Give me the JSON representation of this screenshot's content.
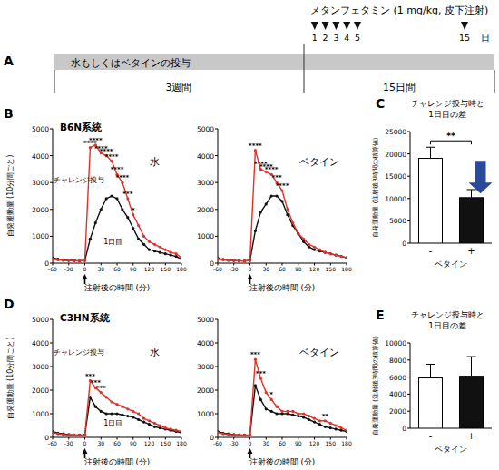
{
  "schematic": {
    "label": "A",
    "drug": "メタンフェタミン (1 mg/kg, 皮下注射)",
    "days": [
      1,
      2,
      3,
      4,
      5,
      15
    ],
    "day_unit": "日",
    "treatment": "水もしくはベタインの投与",
    "phases": [
      "3週間",
      "15日間"
    ]
  },
  "chart_data": [
    {
      "type": "line",
      "label": "B",
      "title": "B6N系統",
      "subtitle": "水",
      "ylabel": "自発運動量 (10分間ごと)",
      "xlabel": "注射後の時間 (分)",
      "x": [
        -60,
        -50,
        -40,
        -30,
        -20,
        -10,
        0,
        10,
        20,
        30,
        40,
        50,
        60,
        70,
        80,
        90,
        100,
        110,
        120,
        130,
        140,
        150,
        160,
        170,
        180
      ],
      "xlim": [
        -60,
        180
      ],
      "xticks": [
        -60,
        -30,
        0,
        30,
        60,
        90,
        120,
        150,
        180
      ],
      "ylim": [
        0,
        5000
      ],
      "yticks": [
        0,
        1000,
        2000,
        3000,
        4000,
        5000
      ],
      "injection_time": 0,
      "series": [
        {
          "color": "#e0322b",
          "marker": "circle",
          "values": [
            150,
            120,
            100,
            100,
            80,
            80,
            100,
            4300,
            4400,
            4100,
            4000,
            3800,
            3300,
            3000,
            2400,
            1800,
            1400,
            1000,
            800,
            700,
            600,
            500,
            400,
            350,
            200
          ]
        },
        {
          "color": "#111111",
          "marker": "circle",
          "values": [
            200,
            150,
            120,
            100,
            100,
            80,
            100,
            900,
            1500,
            2000,
            2400,
            2500,
            2400,
            2000,
            1700,
            1300,
            900,
            700,
            500,
            450,
            400,
            350,
            300,
            250,
            150
          ]
        }
      ],
      "significance": [
        {
          "x": 10,
          "label": "****"
        },
        {
          "x": 20,
          "label": "****"
        },
        {
          "x": 30,
          "label": "****"
        },
        {
          "x": 40,
          "label": "****"
        },
        {
          "x": 50,
          "label": "****"
        },
        {
          "x": 60,
          "label": "****"
        },
        {
          "x": 70,
          "label": "****"
        },
        {
          "x": 80,
          "label": "***"
        },
        {
          "x": 90,
          "label": "*"
        }
      ],
      "annotations": [
        {
          "text": "チャレンジ投与",
          "x": -58,
          "y": 3000
        },
        {
          "text": "1日目",
          "x": 35,
          "y": 700
        }
      ]
    },
    {
      "type": "line",
      "subtitle": "ベタイン",
      "xlabel": "注射後の時間 (分)",
      "x": [
        -60,
        -50,
        -40,
        -30,
        -20,
        -10,
        0,
        10,
        20,
        30,
        40,
        50,
        60,
        70,
        80,
        90,
        100,
        110,
        120,
        130,
        140,
        150,
        160,
        170,
        180
      ],
      "xlim": [
        -60,
        180
      ],
      "xticks": [
        -60,
        -30,
        0,
        30,
        60,
        90,
        120,
        150,
        180
      ],
      "ylim": [
        0,
        5000
      ],
      "yticks": [
        0,
        1000,
        2000,
        3000,
        4000,
        5000
      ],
      "injection_time": 0,
      "series": [
        {
          "color": "#e0322b",
          "marker": "circle",
          "values": [
            150,
            120,
            100,
            90,
            80,
            80,
            100,
            4200,
            3500,
            3400,
            3300,
            3000,
            2700,
            2000,
            1500,
            1100,
            900,
            700,
            600,
            500,
            400,
            350,
            300,
            250,
            200
          ]
        },
        {
          "color": "#111111",
          "marker": "circle",
          "values": [
            180,
            140,
            110,
            100,
            90,
            80,
            100,
            1200,
            1900,
            2200,
            2500,
            2500,
            2300,
            1800,
            1400,
            1100,
            800,
            600,
            500,
            450,
            400,
            350,
            300,
            250,
            200
          ]
        }
      ],
      "significance": [
        {
          "x": 10,
          "label": "****"
        },
        {
          "x": 20,
          "label": "****"
        },
        {
          "x": 30,
          "label": "****"
        },
        {
          "x": 40,
          "label": "****"
        },
        {
          "x": 50,
          "label": "***"
        },
        {
          "x": 60,
          "label": "****"
        }
      ]
    },
    {
      "type": "bar",
      "label": "C",
      "title": [
        "チャレンジ投与時と",
        "1日目の差"
      ],
      "ylabel": "自発運動量 (注射後3時間の積算値)",
      "xlabel": "ベタイン",
      "categories": [
        "-",
        "+"
      ],
      "values": [
        19000,
        10200
      ],
      "errors": [
        2500,
        1800
      ],
      "colors": [
        "#ffffff",
        "#111111"
      ],
      "ylim": [
        0,
        25000
      ],
      "yticks": [
        0,
        5000,
        10000,
        15000,
        20000,
        25000
      ],
      "significance": "**"
    },
    {
      "type": "line",
      "label": "D",
      "title": "C3HN系統",
      "subtitle": "水",
      "ylabel": "自発運動量 (10分間ごと)",
      "xlabel": "注射後の時間 (分)",
      "x": [
        -60,
        -50,
        -40,
        -30,
        -20,
        -10,
        0,
        10,
        20,
        30,
        40,
        50,
        60,
        70,
        80,
        90,
        100,
        110,
        120,
        130,
        140,
        150,
        160,
        170,
        180
      ],
      "xlim": [
        -60,
        180
      ],
      "xticks": [
        -60,
        -30,
        0,
        30,
        60,
        90,
        120,
        150,
        180
      ],
      "ylim": [
        0,
        5000
      ],
      "yticks": [
        0,
        1000,
        2000,
        3000,
        4000,
        5000
      ],
      "injection_time": 0,
      "series": [
        {
          "color": "#e0322b",
          "marker": "circle",
          "values": [
            200,
            150,
            120,
            100,
            100,
            90,
            100,
            2400,
            2100,
            1900,
            1700,
            1500,
            1400,
            1300,
            1200,
            1100,
            1000,
            800,
            700,
            600,
            500,
            400,
            350,
            300,
            250
          ]
        },
        {
          "color": "#111111",
          "marker": "circle",
          "values": [
            250,
            180,
            150,
            120,
            100,
            100,
            100,
            1700,
            1300,
            1100,
            1000,
            1000,
            1000,
            950,
            900,
            850,
            750,
            650,
            550,
            450,
            400,
            350,
            300,
            250,
            200
          ]
        }
      ],
      "significance": [
        {
          "x": 10,
          "label": "***"
        },
        {
          "x": 20,
          "label": "***"
        },
        {
          "x": 30,
          "label": "***"
        }
      ],
      "annotations": [
        {
          "text": "チャレンジ投与",
          "x": -58,
          "y": 3500
        },
        {
          "text": "1日目",
          "x": 35,
          "y": 500
        }
      ]
    },
    {
      "type": "line",
      "subtitle": "ベタイン",
      "xlabel": "注射後の時間 (分)",
      "x": [
        -60,
        -50,
        -40,
        -30,
        -20,
        -10,
        0,
        10,
        20,
        30,
        40,
        50,
        60,
        70,
        80,
        90,
        100,
        110,
        120,
        130,
        140,
        150,
        160,
        170,
        180
      ],
      "xlim": [
        -60,
        180
      ],
      "xticks": [
        -60,
        -30,
        0,
        30,
        60,
        90,
        120,
        150,
        180
      ],
      "ylim": [
        0,
        5000
      ],
      "yticks": [
        0,
        1000,
        2000,
        3000,
        4000,
        5000
      ],
      "injection_time": 0,
      "series": [
        {
          "color": "#e0322b",
          "marker": "circle",
          "values": [
            200,
            150,
            120,
            100,
            100,
            90,
            100,
            3300,
            2500,
            1900,
            1600,
            1300,
            1100,
            1100,
            1100,
            1000,
            1000,
            900,
            800,
            700,
            700,
            600,
            500,
            400,
            300
          ]
        },
        {
          "color": "#111111",
          "marker": "circle",
          "values": [
            250,
            180,
            150,
            120,
            100,
            100,
            100,
            2200,
            1600,
            1200,
            1100,
            1000,
            1000,
            1000,
            950,
            900,
            850,
            750,
            650,
            550,
            450,
            400,
            350,
            300,
            250
          ]
        }
      ],
      "significance": [
        {
          "x": 10,
          "label": "***"
        },
        {
          "x": 20,
          "label": "***"
        },
        {
          "x": 40,
          "label": "*"
        },
        {
          "x": 140,
          "label": "**"
        }
      ]
    },
    {
      "type": "bar",
      "label": "E",
      "title": [
        "チャレンジ投与時と",
        "1日目の差"
      ],
      "ylabel": "自発運動量 (注射後3時間の積算値)",
      "xlabel": "ベタイン",
      "categories": [
        "-",
        "+"
      ],
      "values": [
        5900,
        6100
      ],
      "errors": [
        1600,
        2300
      ],
      "colors": [
        "#ffffff",
        "#111111"
      ],
      "ylim": [
        0,
        10000
      ],
      "yticks": [
        0,
        2000,
        4000,
        6000,
        8000,
        10000
      ]
    }
  ]
}
